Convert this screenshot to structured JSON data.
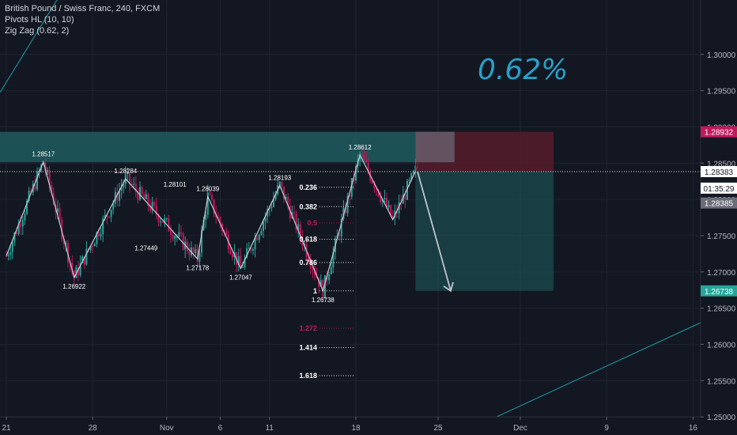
{
  "legend": {
    "symbol": "British Pound / Swiss Franc, 240, FXCM",
    "indicator1": "Pivots HL (10, 10)",
    "indicator2": "Zig Zag (0.62, 2)"
  },
  "overlay_text": "0.62%",
  "colors": {
    "background": "#131722",
    "up": "#26a69a",
    "down": "#c2185b",
    "axis_text": "#b2b5be",
    "teal_zone": "#1e5c5e",
    "red_zone": "#5a1d2c",
    "trend_line": "#1a9bab",
    "accent": "#26a1c9"
  },
  "chart_data": {
    "type": "candlestick",
    "title": "British Pound / Swiss Franc, 240, FXCM",
    "ylim": [
      1.2475,
      1.3075
    ],
    "y_ticks": [
      "1.30000",
      "1.29500",
      "1.29000",
      "1.28500",
      "1.28000",
      "1.27500",
      "1.27000",
      "1.26500",
      "1.26000",
      "1.25500",
      "1.25000"
    ],
    "x_ticks": [
      {
        "label": "21",
        "bar": 0
      },
      {
        "label": "28",
        "bar": 42
      },
      {
        "label": "Nov",
        "bar": 78
      },
      {
        "label": "6",
        "bar": 104
      },
      {
        "label": "11",
        "bar": 128
      },
      {
        "label": "18",
        "bar": 170
      },
      {
        "label": "25",
        "bar": 210
      },
      {
        "label": "Dec",
        "bar": 250
      },
      {
        "label": "9",
        "bar": 292
      },
      {
        "label": "16",
        "bar": 334
      }
    ],
    "pivots": [
      {
        "label": "1.28517",
        "bar": 18,
        "price": 1.28517,
        "kind": "high"
      },
      {
        "label": "1.26922",
        "bar": 33,
        "price": 1.26922,
        "kind": "low"
      },
      {
        "label": "1.28284",
        "bar": 58,
        "price": 1.28284,
        "kind": "high"
      },
      {
        "label": "1.27449",
        "bar": 68,
        "price": 1.27449,
        "kind": "low"
      },
      {
        "label": "1.28101",
        "bar": 82,
        "price": 1.28101,
        "kind": "high"
      },
      {
        "label": "1.28039",
        "bar": 98,
        "price": 1.28039,
        "kind": "high"
      },
      {
        "label": "1.27178",
        "bar": 93,
        "price": 1.27178,
        "kind": "low"
      },
      {
        "label": "1.28193",
        "bar": 133,
        "price": 1.28193,
        "kind": "high"
      },
      {
        "label": "1.27047",
        "bar": 114,
        "price": 1.27047,
        "kind": "low"
      },
      {
        "label": "1.28612",
        "bar": 172,
        "price": 1.28612,
        "kind": "high"
      },
      {
        "label": "1.26738",
        "bar": 154,
        "price": 1.26738,
        "kind": "low"
      }
    ],
    "zigzag": [
      {
        "bar": 0,
        "price": 1.2722
      },
      {
        "bar": 18,
        "price": 1.28517
      },
      {
        "bar": 33,
        "price": 1.26922
      },
      {
        "bar": 58,
        "price": 1.28284
      },
      {
        "bar": 93,
        "price": 1.27178
      },
      {
        "bar": 98,
        "price": 1.28039
      },
      {
        "bar": 114,
        "price": 1.27047
      },
      {
        "bar": 133,
        "price": 1.28193
      },
      {
        "bar": 154,
        "price": 1.26738
      },
      {
        "bar": 172,
        "price": 1.28612
      },
      {
        "bar": 188,
        "price": 1.2772
      },
      {
        "bar": 200,
        "price": 1.2845
      }
    ],
    "fibonacci": [
      {
        "label": "0.236",
        "price": 1.28167,
        "color": "#ffffff"
      },
      {
        "label": "0.382",
        "price": 1.279,
        "color": "#ffffff"
      },
      {
        "label": "0.5",
        "price": 1.27675,
        "color": "#c2185b"
      },
      {
        "label": "0.618",
        "price": 1.2745,
        "color": "#ffffff"
      },
      {
        "label": "0.786",
        "price": 1.2713,
        "color": "#ffffff"
      },
      {
        "label": "1",
        "price": 1.26738,
        "color": "#ffffff"
      },
      {
        "label": "1.272",
        "price": 1.26223,
        "color": "#c2185b"
      },
      {
        "label": "1.414",
        "price": 1.25955,
        "color": "#ffffff"
      },
      {
        "label": "1.618",
        "price": 1.2557,
        "color": "#ffffff"
      }
    ],
    "position": {
      "type": "short",
      "entry": 1.28383,
      "stop": 1.28932,
      "target": 1.26738
    },
    "axis_labels": [
      {
        "text": "1.28932",
        "price": 1.28932,
        "bg": "#c2185b",
        "fg": "#ffffff"
      },
      {
        "text": "1.28383",
        "price": 1.28383,
        "bg": "#ffffff",
        "fg": "#131722"
      },
      {
        "text": "01:35:29",
        "price": 1.28155,
        "bg": "#ffffff",
        "fg": "#131722"
      },
      {
        "text": "1.28385",
        "price": 1.2795,
        "bg": "#6a6d78",
        "fg": "#ffffff"
      },
      {
        "text": "1.26738",
        "price": 1.26738,
        "bg": "#26a69a",
        "fg": "#ffffff"
      }
    ]
  }
}
